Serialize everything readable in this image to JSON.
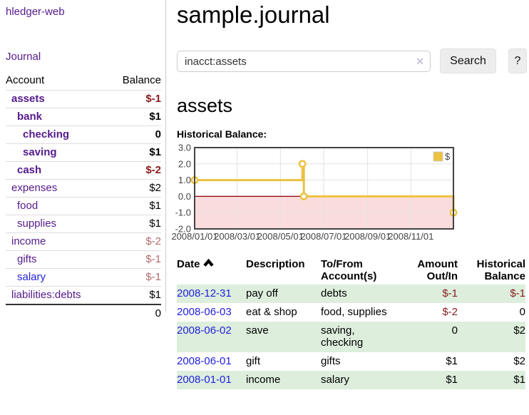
{
  "colors": {
    "link_purple": "#551a8b",
    "link_blue": "#2222dd",
    "neg_strong": "#8b1a1a",
    "neg_muted": "#b36a6a",
    "row_green": "#ddeedd",
    "row_border": "#dddddd",
    "total_border": "#333333",
    "divider": "#cccccc",
    "input_border": "#cccccc",
    "clear_icon": "#c9c3dd",
    "button_bg": "#ededed",
    "button_border": "#e2e2e2",
    "chart_line": "#edc240",
    "chart_border": "#434343",
    "chart_grid": "#e2e2e2",
    "chart_zero": "#8b0000",
    "chart_negative_fill": "#fbdcdc",
    "chart_text": "#444444"
  },
  "sidebar": {
    "app_title": "hledger-web",
    "nav": {
      "journal_label": "Journal"
    },
    "accounts_table": {
      "headers": {
        "account": "Account",
        "balance": "Balance"
      },
      "rows": [
        {
          "name": "assets",
          "indent": 1,
          "bold": true,
          "link_color": "purple",
          "balance": "$-1",
          "balance_style": "neg-strong"
        },
        {
          "name": "bank",
          "indent": 2,
          "bold": true,
          "link_color": "purple",
          "balance": "$1",
          "balance_style": "pos"
        },
        {
          "name": "checking",
          "indent": 3,
          "bold": true,
          "link_color": "purple",
          "balance": "0",
          "balance_style": "pos"
        },
        {
          "name": "saving",
          "indent": 3,
          "bold": true,
          "link_color": "purple",
          "balance": "$1",
          "balance_style": "pos"
        },
        {
          "name": "cash",
          "indent": 2,
          "bold": true,
          "link_color": "purple",
          "balance": "$-2",
          "balance_style": "neg-strong"
        },
        {
          "name": "expenses",
          "indent": 1,
          "bold": false,
          "link_color": "purple",
          "balance": "$2",
          "balance_style": "pos"
        },
        {
          "name": "food",
          "indent": 2,
          "bold": false,
          "link_color": "purple",
          "balance": "$1",
          "balance_style": "pos"
        },
        {
          "name": "supplies",
          "indent": 2,
          "bold": false,
          "link_color": "purple",
          "balance": "$1",
          "balance_style": "pos"
        },
        {
          "name": "income",
          "indent": 1,
          "bold": false,
          "link_color": "purple",
          "balance": "$-2",
          "balance_style": "neg-muted"
        },
        {
          "name": "gifts",
          "indent": 2,
          "bold": false,
          "link_color": "purple",
          "balance": "$-1",
          "balance_style": "neg-muted"
        },
        {
          "name": "salary",
          "indent": 2,
          "bold": false,
          "link_color": "blue",
          "balance": "$-1",
          "balance_style": "neg-muted"
        },
        {
          "name": "liabilities:debts",
          "indent": 1,
          "bold": false,
          "link_color": "purple",
          "balance": "$1",
          "balance_style": "pos"
        }
      ],
      "total": {
        "balance": "0"
      }
    }
  },
  "header": {
    "title": "sample.journal"
  },
  "search": {
    "value": "inacct:assets",
    "clear_icon": "✕",
    "button_label": "Search",
    "help_label": "?"
  },
  "account_page": {
    "heading": "assets",
    "chart_label": "Historical Balance:"
  },
  "chart_data": {
    "type": "line",
    "title": "Historical Balance:",
    "step": true,
    "x_range": [
      "2008-01-01",
      "2008-12-31"
    ],
    "ylim": [
      -2,
      3
    ],
    "y_ticks": [
      "3.0",
      "2.0",
      "1.0",
      "0.0",
      "-1.0",
      "-2.0"
    ],
    "y_tick_values": [
      3,
      2,
      1,
      0,
      -1,
      -2
    ],
    "x_ticks": [
      "2008/01/01",
      "2008/03/01",
      "2008/05/01",
      "2008/07/01",
      "2008/09/01",
      "2008/11/01"
    ],
    "x_tick_dates": [
      "2008-01-01",
      "2008-03-01",
      "2008-05-01",
      "2008-07-01",
      "2008-09-01",
      "2008-11-01"
    ],
    "grid": true,
    "legend_position": "top-right",
    "series": [
      {
        "name": "$",
        "points": [
          {
            "date": "2008-01-01",
            "value": 1
          },
          {
            "date": "2008-06-01",
            "value": 2
          },
          {
            "date": "2008-06-03",
            "value": 0
          },
          {
            "date": "2008-12-31",
            "value": -1
          }
        ]
      }
    ]
  },
  "transactions": {
    "headers": {
      "date": "Date",
      "description": "Description",
      "accounts": "To/From\nAccount(s)",
      "amount": "Amount\nOut/In",
      "balance": "Historical\nBalance"
    },
    "rows": [
      {
        "date": "2008-12-31",
        "description": "pay off",
        "accounts": "debts",
        "amount": "$-1",
        "amount_neg": true,
        "balance": "$-1",
        "balance_neg": true,
        "highlight": true
      },
      {
        "date": "2008-06-03",
        "description": "eat & shop",
        "accounts": "food, supplies",
        "amount": "$-2",
        "amount_neg": true,
        "balance": "0",
        "balance_neg": false,
        "highlight": false
      },
      {
        "date": "2008-06-02",
        "description": "save",
        "accounts": "saving,\nchecking",
        "amount": "0",
        "amount_neg": false,
        "balance": "$2",
        "balance_neg": false,
        "highlight": true
      },
      {
        "date": "2008-06-01",
        "description": "gift",
        "accounts": "gifts",
        "amount": "$1",
        "amount_neg": false,
        "balance": "$2",
        "balance_neg": false,
        "highlight": false
      },
      {
        "date": "2008-01-01",
        "description": "income",
        "accounts": "salary",
        "amount": "$1",
        "amount_neg": false,
        "balance": "$1",
        "balance_neg": false,
        "highlight": true
      }
    ]
  }
}
